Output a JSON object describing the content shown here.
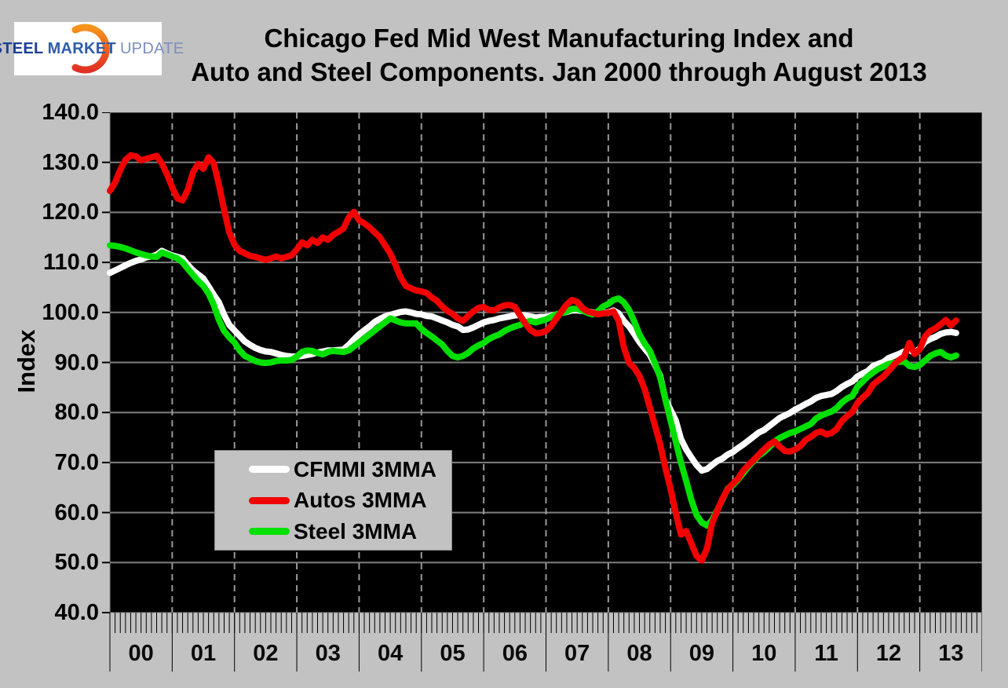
{
  "header": {
    "logo": {
      "word1": "STEEL",
      "word2": "MARKET",
      "word3": "UPDATE"
    },
    "title_line1": "Chicago Fed Mid West Manufacturing Index and",
    "title_line2": "Auto and Steel Components. Jan 2000 through August 2013"
  },
  "colors": {
    "page_bg": "#c2c2c2",
    "plot_bg": "#000000",
    "grid": "#7f7f7f",
    "grid_dashed": "#999999",
    "axis_text": "#000000",
    "logo_orange_top": "#f7941d",
    "logo_orange_bottom": "#e03123",
    "series_cfmmi": "#ffffff",
    "series_autos": "#f20000",
    "series_steel": "#00e000"
  },
  "chart_data": {
    "type": "line",
    "title": "Chicago Fed Mid West Manufacturing Index and Auto and Steel Components. Jan 2000 through August 2013",
    "xlabel": "",
    "ylabel": "Index",
    "ylim": [
      40,
      140
    ],
    "ytick_step": 10,
    "ytick_labels": [
      "140.0",
      "130.0",
      "120.0",
      "110.0",
      "100.0",
      "90.0",
      "80.0",
      "70.0",
      "60.0",
      "50.0",
      "40.0"
    ],
    "xtick_labels": [
      "00",
      "01",
      "02",
      "03",
      "04",
      "05",
      "06",
      "07",
      "08",
      "09",
      "10",
      "11",
      "12",
      "13"
    ],
    "x_start_month": "2000-01",
    "x_end_month": "2013-08",
    "months_per_year": 12,
    "x_axis_total_months": 168,
    "grid": {
      "horizontal": "solid",
      "vertical": "dashed at year boundaries",
      "minor_ticks": "monthly"
    },
    "legend_position": "inside left, upper-middle of lower-left quadrant",
    "series": [
      {
        "name": "CFMMI 3MMA",
        "color": "#ffffff",
        "values": [
          107.9,
          108.4,
          108.9,
          109.4,
          109.9,
          110.3,
          110.6,
          111.0,
          111.2,
          111.5,
          112.3,
          111.8,
          111.4,
          111.1,
          110.8,
          109.5,
          108.4,
          107.6,
          106.8,
          105.2,
          103.5,
          102.0,
          99.5,
          97.5,
          96.4,
          95.3,
          94.2,
          93.5,
          92.9,
          92.5,
          92.2,
          92.1,
          91.8,
          91.5,
          91.3,
          91.2,
          91.2,
          91.3,
          91.5,
          91.7,
          92.0,
          92.2,
          92.4,
          92.4,
          92.5,
          92.6,
          93.5,
          94.6,
          95.6,
          96.4,
          97.2,
          98.1,
          98.7,
          99.2,
          99.5,
          99.8,
          100.1,
          100.2,
          100.0,
          99.7,
          99.6,
          99.3,
          99.2,
          98.8,
          98.4,
          98.0,
          97.5,
          97.2,
          96.5,
          96.6,
          97.0,
          97.5,
          98.0,
          98.3,
          98.5,
          98.8,
          99.0,
          99.2,
          99.4,
          99.5,
          99.4,
          99.2,
          99.0,
          99.1,
          99.1,
          99.3,
          99.6,
          99.9,
          100.1,
          100.4,
          100.4,
          100.3,
          100.2,
          100.0,
          99.8,
          99.9,
          100.0,
          100.4,
          99.8,
          98.3,
          97.2,
          95.7,
          94.1,
          92.8,
          91.5,
          89.5,
          87.3,
          82.6,
          80.5,
          78.4,
          74.7,
          72.6,
          71.0,
          69.5,
          68.4,
          68.7,
          69.5,
          70.3,
          70.8,
          71.6,
          72.1,
          72.9,
          73.6,
          74.4,
          75.2,
          76.0,
          76.5,
          77.3,
          78.1,
          78.9,
          79.4,
          79.9,
          80.6,
          81.1,
          81.7,
          82.2,
          82.9,
          83.3,
          83.5,
          83.7,
          84.3,
          85.1,
          85.7,
          86.2,
          87.2,
          87.8,
          88.3,
          89.3,
          89.7,
          90.1,
          90.9,
          91.3,
          91.7,
          92.2,
          92.5,
          91.9,
          92.8,
          94.1,
          94.7,
          95.1,
          95.7,
          96.0,
          96.1,
          95.9
        ]
      },
      {
        "name": "Autos 3MMA",
        "color": "#f20000",
        "values": [
          124.3,
          126.0,
          128.5,
          130.5,
          131.4,
          131.2,
          130.4,
          130.7,
          131.0,
          131.3,
          129.8,
          127.6,
          125.0,
          122.8,
          122.4,
          124.5,
          128.0,
          129.7,
          128.7,
          131.0,
          129.8,
          125.5,
          120.5,
          116.0,
          113.5,
          112.3,
          111.8,
          111.3,
          111.1,
          110.8,
          110.5,
          110.8,
          111.2,
          110.8,
          111.1,
          111.4,
          112.6,
          114.0,
          113.4,
          114.5,
          113.9,
          115.0,
          114.5,
          115.5,
          116.1,
          116.8,
          119.0,
          120.1,
          118.4,
          117.8,
          117.0,
          116.0,
          115.0,
          113.4,
          111.8,
          109.5,
          107.0,
          105.3,
          104.8,
          104.4,
          104.2,
          103.9,
          103.0,
          102.3,
          101.2,
          100.3,
          99.7,
          98.8,
          98.3,
          99.3,
          100.2,
          100.9,
          101.1,
          100.5,
          100.4,
          101.0,
          101.4,
          101.5,
          101.1,
          99.4,
          97.8,
          96.5,
          95.8,
          95.9,
          96.3,
          97.3,
          98.8,
          100.2,
          101.6,
          102.5,
          102.1,
          100.9,
          100.2,
          99.9,
          99.6,
          99.8,
          99.9,
          100.2,
          98.3,
          93.0,
          89.9,
          88.9,
          87.3,
          84.7,
          81.0,
          77.3,
          73.6,
          68.9,
          64.7,
          59.9,
          55.6,
          56.3,
          53.8,
          51.3,
          50.4,
          52.8,
          57.9,
          60.4,
          62.8,
          64.7,
          65.8,
          66.8,
          68.4,
          69.5,
          70.5,
          71.6,
          72.6,
          73.6,
          74.2,
          73.2,
          72.3,
          72.2,
          72.6,
          73.3,
          74.5,
          75.1,
          75.9,
          76.2,
          75.6,
          75.9,
          76.7,
          78.3,
          79.3,
          80.1,
          81.9,
          83.0,
          83.9,
          85.6,
          86.4,
          87.2,
          88.3,
          89.5,
          90.5,
          91.2,
          93.9,
          91.7,
          92.6,
          95.2,
          96.3,
          96.8,
          97.6,
          98.5,
          97.4,
          98.4
        ]
      },
      {
        "name": "Steel 3MMA",
        "color": "#00e000",
        "values": [
          113.4,
          113.3,
          113.1,
          112.8,
          112.4,
          112.0,
          111.7,
          111.4,
          111.2,
          111.1,
          112.0,
          111.6,
          111.2,
          110.8,
          110.0,
          108.7,
          107.5,
          106.3,
          105.3,
          103.8,
          101.5,
          98.5,
          96.3,
          95.0,
          94.0,
          92.4,
          91.3,
          90.8,
          90.3,
          90.0,
          89.9,
          90.0,
          90.3,
          90.4,
          90.4,
          90.5,
          91.2,
          92.1,
          92.4,
          92.3,
          91.9,
          91.6,
          92.1,
          92.3,
          92.2,
          92.1,
          92.4,
          93.2,
          94.0,
          94.8,
          95.6,
          96.4,
          97.2,
          98.0,
          98.8,
          98.4,
          98.0,
          97.8,
          97.8,
          97.8,
          96.7,
          95.9,
          95.2,
          94.4,
          93.6,
          92.3,
          91.3,
          91.0,
          91.3,
          91.9,
          92.8,
          93.4,
          93.9,
          94.7,
          95.2,
          95.6,
          96.3,
          96.8,
          97.2,
          97.5,
          98.0,
          98.3,
          98.0,
          98.3,
          98.6,
          99.1,
          99.6,
          99.9,
          100.2,
          100.7,
          100.7,
          100.4,
          99.9,
          99.6,
          100.2,
          101.2,
          101.7,
          102.5,
          102.8,
          102.0,
          100.5,
          98.2,
          95.6,
          93.8,
          92.3,
          89.8,
          87.0,
          82.6,
          78.4,
          74.2,
          70.0,
          66.3,
          62.5,
          59.5,
          58.0,
          57.4,
          58.5,
          60.5,
          62.6,
          64.8,
          65.5,
          66.6,
          67.9,
          69.2,
          70.3,
          71.4,
          72.1,
          73.1,
          74.2,
          74.9,
          75.4,
          75.9,
          76.2,
          76.7,
          77.2,
          77.7,
          78.8,
          79.4,
          79.8,
          80.2,
          80.9,
          82.0,
          82.8,
          83.3,
          85.2,
          86.2,
          87.2,
          88.0,
          88.7,
          89.2,
          89.7,
          89.9,
          90.1,
          90.2,
          89.3,
          89.1,
          89.5,
          90.4,
          91.3,
          91.8,
          92.1,
          91.4,
          91.0,
          91.4
        ]
      }
    ]
  }
}
